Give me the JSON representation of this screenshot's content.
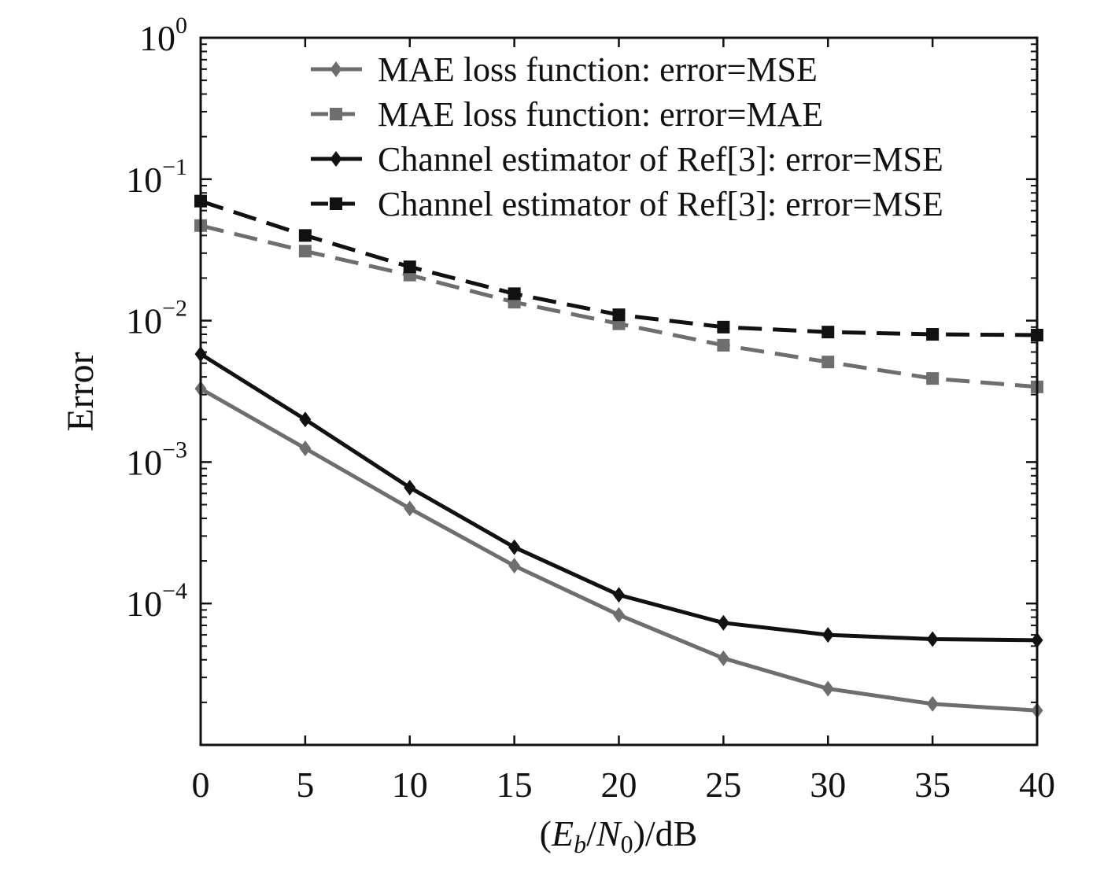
{
  "chart_data": {
    "type": "line",
    "title": "",
    "xlabel_parts": {
      "open": "(",
      "e": "E",
      "b": "b",
      "slash": "/",
      "n": "N",
      "zero": "0",
      "close": ")/dB"
    },
    "ylabel": "Error",
    "yscale": "log",
    "xlim": [
      0,
      40
    ],
    "ylim": [
      1e-05,
      1
    ],
    "x": [
      0,
      5,
      10,
      15,
      20,
      25,
      30,
      35,
      40
    ],
    "x_ticks": [
      {
        "value": 0,
        "label": "0"
      },
      {
        "value": 5,
        "label": "5"
      },
      {
        "value": 10,
        "label": "10"
      },
      {
        "value": 15,
        "label": "15"
      },
      {
        "value": 20,
        "label": "20"
      },
      {
        "value": 25,
        "label": "25"
      },
      {
        "value": 30,
        "label": "30"
      },
      {
        "value": 35,
        "label": "35"
      },
      {
        "value": 40,
        "label": "40"
      }
    ],
    "y_ticks": [
      {
        "value": 1,
        "base": "10",
        "exp": "0"
      },
      {
        "value": 0.1,
        "base": "10",
        "exp": "−1"
      },
      {
        "value": 0.01,
        "base": "10",
        "exp": "−2"
      },
      {
        "value": 0.001,
        "base": "10",
        "exp": "−3"
      },
      {
        "value": 0.0001,
        "base": "10",
        "exp": "−4"
      }
    ],
    "legend_position": "top-right",
    "series": [
      {
        "name": "MAE loss function: error=MSE",
        "color": "#6e6e6e",
        "dash": "solid",
        "marker": "diamond",
        "values": [
          0.0033,
          0.00125,
          0.00047,
          0.000185,
          8.3e-05,
          4.1e-05,
          2.5e-05,
          1.95e-05,
          1.75e-05
        ]
      },
      {
        "name": "MAE loss function: error=MAE",
        "color": "#6e6e6e",
        "dash": "dashed",
        "marker": "square",
        "values": [
          0.047,
          0.031,
          0.021,
          0.0135,
          0.0095,
          0.0067,
          0.0051,
          0.0039,
          0.0034
        ]
      },
      {
        "name": "Channel estimator of Ref[3]:  error=MSE",
        "color": "#111111",
        "dash": "solid",
        "marker": "diamond",
        "values": [
          0.0058,
          0.002,
          0.00066,
          0.00025,
          0.000115,
          7.3e-05,
          6e-05,
          5.6e-05,
          5.5e-05
        ]
      },
      {
        "name": "Channel estimator of Ref[3]:  error=MSE",
        "color": "#111111",
        "dash": "dashed",
        "marker": "square",
        "values": [
          0.07,
          0.04,
          0.024,
          0.0155,
          0.011,
          0.009,
          0.0083,
          0.008,
          0.0079
        ]
      }
    ]
  }
}
